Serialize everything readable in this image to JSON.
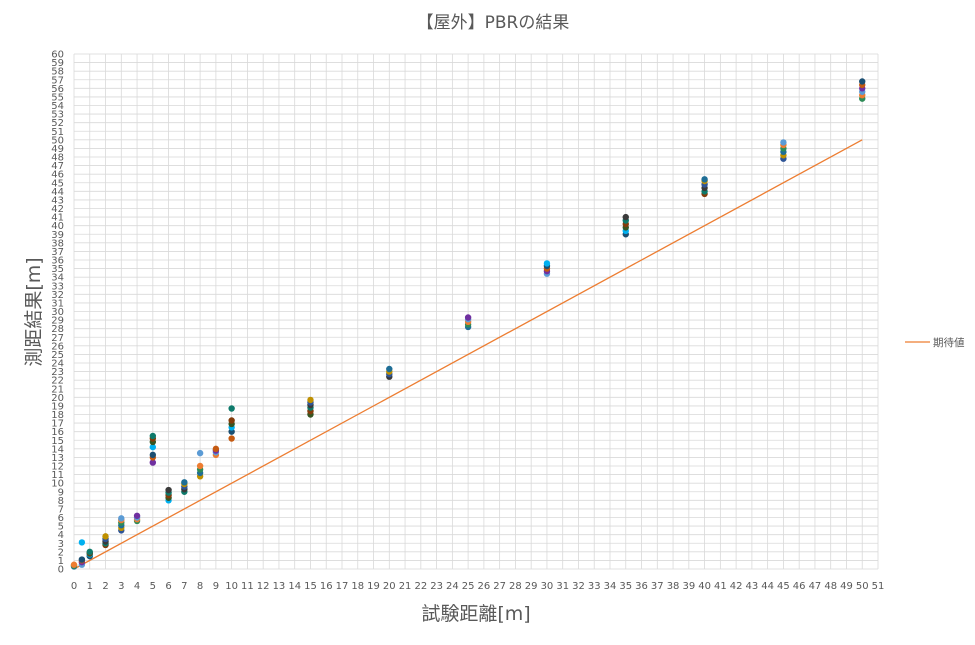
{
  "chart_data": {
    "type": "scatter",
    "title": "【屋外】PBRの結果",
    "xlabel": "試験距離[m]",
    "ylabel": "測距結果[m]",
    "xlim": [
      0,
      51
    ],
    "ylim": [
      0,
      60
    ],
    "x_ticks": [
      "0",
      "1",
      "2",
      "3",
      "4",
      "5",
      "6",
      "7",
      "8",
      "9",
      "10",
      "11",
      "12",
      "13",
      "14",
      "15",
      "16",
      "17",
      "18",
      "19",
      "20",
      "21",
      "22",
      "23",
      "24",
      "25",
      "26",
      "27",
      "28",
      "29",
      "30",
      "31",
      "32",
      "33",
      "34",
      "35",
      "36",
      "37",
      "38",
      "39",
      "40",
      "41",
      "42",
      "43",
      "44",
      "45",
      "46",
      "47",
      "48",
      "49",
      "50",
      "51"
    ],
    "y_ticks": [
      "0",
      "1",
      "2",
      "3",
      "4",
      "5",
      "6",
      "7",
      "8",
      "9",
      "10",
      "11",
      "12",
      "13",
      "14",
      "15",
      "16",
      "17",
      "18",
      "19",
      "20",
      "21",
      "22",
      "23",
      "24",
      "25",
      "26",
      "27",
      "28",
      "29",
      "30",
      "31",
      "32",
      "33",
      "34",
      "35",
      "36",
      "37",
      "38",
      "39",
      "40",
      "41",
      "42",
      "43",
      "44",
      "45",
      "46",
      "47",
      "48",
      "49",
      "50",
      "51",
      "52",
      "53",
      "54",
      "55",
      "56",
      "57",
      "58",
      "59",
      "60"
    ],
    "grid": true,
    "legend_position": "right",
    "colors": {
      "expected_line": "#ED7D31",
      "grid": "#d9d9d9",
      "point_palette": [
        "#1F6E96",
        "#2E8B57",
        "#ED7D31",
        "#5B9BD5",
        "#7030A0",
        "#C55A11",
        "#1B4F72",
        "#00B0F0",
        "#375623",
        "#833C0B",
        "#0E7A6B",
        "#3A3A3A",
        "#2F5597",
        "#BF9000"
      ]
    },
    "series": [
      {
        "name": "期待値",
        "kind": "line",
        "x": [
          0,
          50
        ],
        "y": [
          0,
          50
        ]
      }
    ],
    "measurements": [
      {
        "x": 0,
        "values": [
          0.3,
          0.4,
          0.5
        ]
      },
      {
        "x": 0.5,
        "values": [
          0.5,
          0.8,
          1.0,
          1.1,
          3.1
        ]
      },
      {
        "x": 1,
        "values": [
          1.5,
          1.7,
          1.8,
          1.9,
          2.0
        ]
      },
      {
        "x": 2,
        "values": [
          2.8,
          3.0,
          3.2,
          3.5,
          3.8
        ]
      },
      {
        "x": 3,
        "values": [
          4.5,
          4.8,
          5.1,
          5.4,
          5.7,
          5.9
        ]
      },
      {
        "x": 4,
        "values": [
          5.6,
          5.8,
          6.0,
          6.2
        ]
      },
      {
        "x": 5,
        "values": [
          12.4,
          13.0,
          13.3,
          14.2,
          14.8,
          15.2,
          15.5
        ]
      },
      {
        "x": 6,
        "values": [
          8.0,
          8.3,
          8.6,
          8.9,
          9.2
        ]
      },
      {
        "x": 7,
        "values": [
          9.0,
          9.3,
          9.6,
          9.9,
          10.1
        ]
      },
      {
        "x": 8,
        "values": [
          10.8,
          11.2,
          11.6,
          12.0,
          13.5
        ]
      },
      {
        "x": 9,
        "values": [
          13.3,
          13.6,
          13.8,
          14.0
        ]
      },
      {
        "x": 10,
        "values": [
          15.2,
          16.0,
          16.5,
          16.9,
          17.3,
          18.7
        ]
      },
      {
        "x": 15,
        "values": [
          18.0,
          18.4,
          18.8,
          19.1,
          19.4,
          19.7
        ]
      },
      {
        "x": 20,
        "values": [
          22.4,
          22.7,
          23.0,
          23.3
        ]
      },
      {
        "x": 25,
        "values": [
          28.2,
          28.5,
          28.8,
          29.1,
          29.3
        ]
      },
      {
        "x": 30,
        "values": [
          34.4,
          34.7,
          35.0,
          35.3,
          35.6
        ]
      },
      {
        "x": 35,
        "values": [
          39.0,
          39.4,
          39.8,
          40.2,
          40.6,
          41.0
        ]
      },
      {
        "x": 40,
        "values": [
          43.7,
          44.0,
          44.4,
          44.8,
          45.2,
          45.4
        ]
      },
      {
        "x": 45,
        "values": [
          47.8,
          48.2,
          48.6,
          49.0,
          49.4,
          49.7
        ]
      },
      {
        "x": 50,
        "values": [
          54.8,
          55.2,
          55.6,
          56.0,
          56.4,
          56.8
        ]
      }
    ]
  }
}
